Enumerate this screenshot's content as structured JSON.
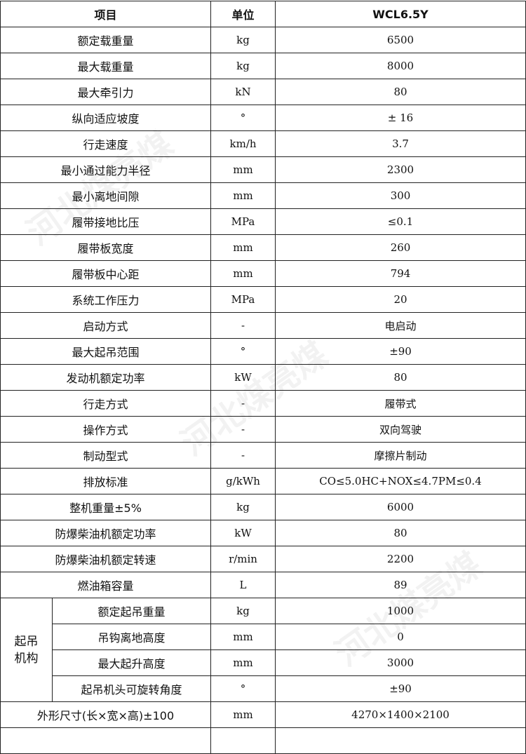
{
  "header": {
    "item": "项目",
    "unit": "单位",
    "model": "WCL6.5Y"
  },
  "rows": [
    {
      "item": "额定载重量",
      "unit": "kg",
      "value": "6500"
    },
    {
      "item": "最大载重量",
      "unit": "kg",
      "value": "8000"
    },
    {
      "item": "最大牵引力",
      "unit": "kN",
      "value": "80"
    },
    {
      "item": "纵向适应坡度",
      "unit": "°",
      "value": "± 16"
    },
    {
      "item": "行走速度",
      "unit": "km/h",
      "value": "3.7"
    },
    {
      "item": "最小通过能力半径",
      "unit": "mm",
      "value": "2300"
    },
    {
      "item": "最小离地间隙",
      "unit": "mm",
      "value": "300"
    },
    {
      "item": "履带接地比压",
      "unit": "MPa",
      "value": "≤0.1"
    },
    {
      "item": "履带板宽度",
      "unit": "mm",
      "value": "260"
    },
    {
      "item": "履带板中心距",
      "unit": "mm",
      "value": "794"
    },
    {
      "item": "系统工作压力",
      "unit": "MPa",
      "value": "20"
    },
    {
      "item": "启动方式",
      "unit": "-",
      "value": "电启动"
    },
    {
      "item": "最大起吊范围",
      "unit": "°",
      "value": "±90"
    },
    {
      "item": "发动机额定功率",
      "unit": "kW",
      "value": "80"
    },
    {
      "item": "行走方式",
      "unit": "-",
      "value": "履带式"
    },
    {
      "item": "操作方式",
      "unit": "-",
      "value": "双向驾驶"
    },
    {
      "item": "制动型式",
      "unit": "-",
      "value": "摩擦片制动"
    },
    {
      "item": "排放标准",
      "unit": "g/kWh",
      "value": "CO≤5.0HC+NOX≤4.7PM≤0.4"
    },
    {
      "item": "整机重量±5%",
      "unit": "kg",
      "value": "6000"
    },
    {
      "item": "防爆柴油机额定功率",
      "unit": "kW",
      "value": "80"
    },
    {
      "item": "防爆柴油机额定转速",
      "unit": "r/min",
      "value": "2200"
    },
    {
      "item": "燃油箱容量",
      "unit": "L",
      "value": "89"
    }
  ],
  "group": {
    "label": "起吊机构",
    "rows": [
      {
        "item": "额定起吊重量",
        "unit": "kg",
        "value": "1000"
      },
      {
        "item": "吊钩离地高度",
        "unit": "mm",
        "value": "0"
      },
      {
        "item": "最大起升高度",
        "unit": "mm",
        "value": "3000"
      },
      {
        "item": "起吊机头可旋转角度",
        "unit": "°",
        "value": "±90"
      }
    ]
  },
  "last": {
    "item": "外形尺寸(长×宽×高)±100",
    "unit": "mm",
    "value": "4270×1400×2100"
  },
  "watermark": "河北煤亮煤"
}
